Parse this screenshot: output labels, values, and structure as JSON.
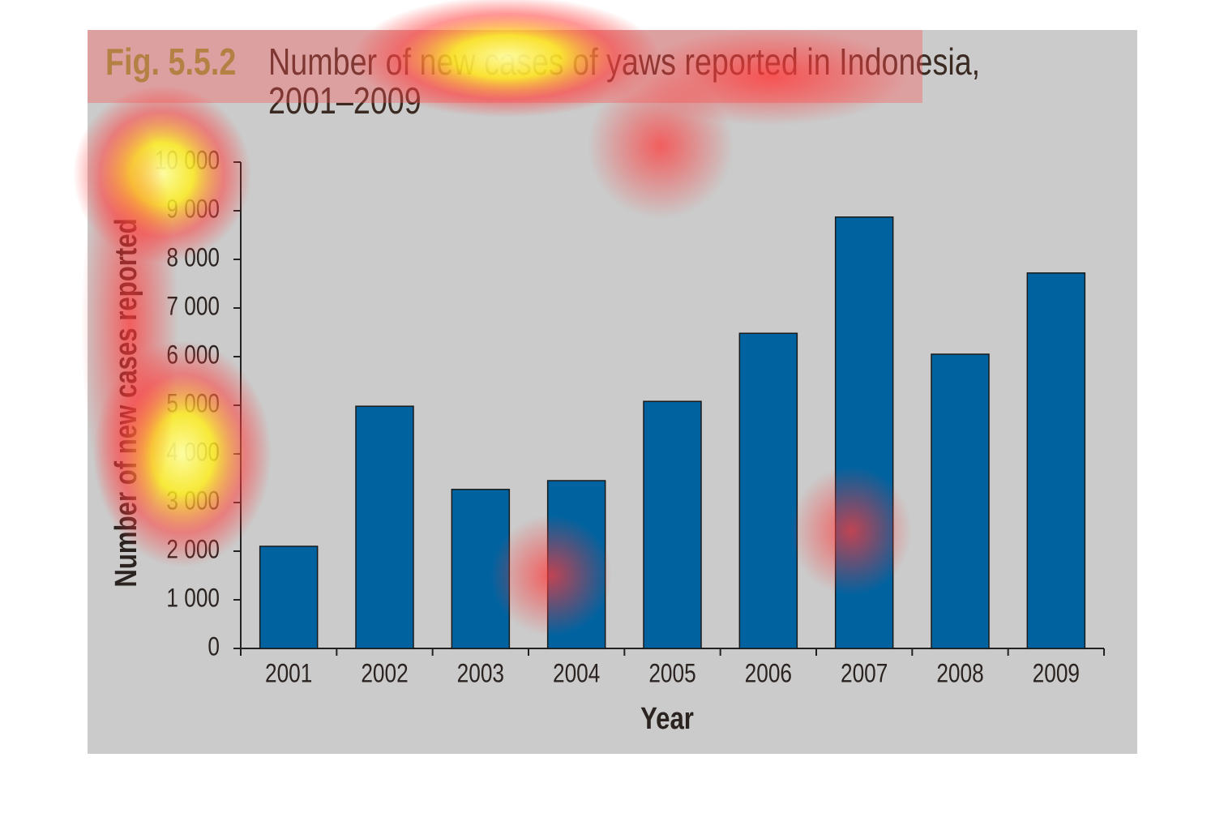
{
  "chart_data": {
    "type": "bar",
    "figure_label": "Fig. 5.5.2",
    "title_lines": [
      "Number of new cases of yaws reported in Indonesia,",
      "2001–2009"
    ],
    "y_label": "Number of new cases reported",
    "x_label": "Year",
    "categories": [
      "2001",
      "2002",
      "2003",
      "2004",
      "2005",
      "2006",
      "2007",
      "2008",
      "2009"
    ],
    "values": [
      2100,
      4980,
      3270,
      3450,
      5080,
      6480,
      8870,
      6050,
      7720
    ],
    "color": "#0063a0",
    "ylim": [
      0,
      10000
    ],
    "yticks": [
      0,
      {
        "value": 1000,
        "label": "1 000"
      },
      {
        "value": 2000,
        "label": "2 000"
      },
      {
        "value": 3000,
        "label": "3 000"
      },
      {
        "value": 4000,
        "label": "4 000"
      },
      {
        "value": 5000,
        "label": "5 000"
      },
      {
        "value": 6000,
        "label": "6 000"
      },
      {
        "value": 7000,
        "label": "7 000"
      },
      {
        "value": 8000,
        "label": "8 000"
      },
      {
        "value": 9000,
        "label": "9 000"
      },
      {
        "value": 10000,
        "label": "10 000"
      }
    ],
    "grid": false
  }
}
